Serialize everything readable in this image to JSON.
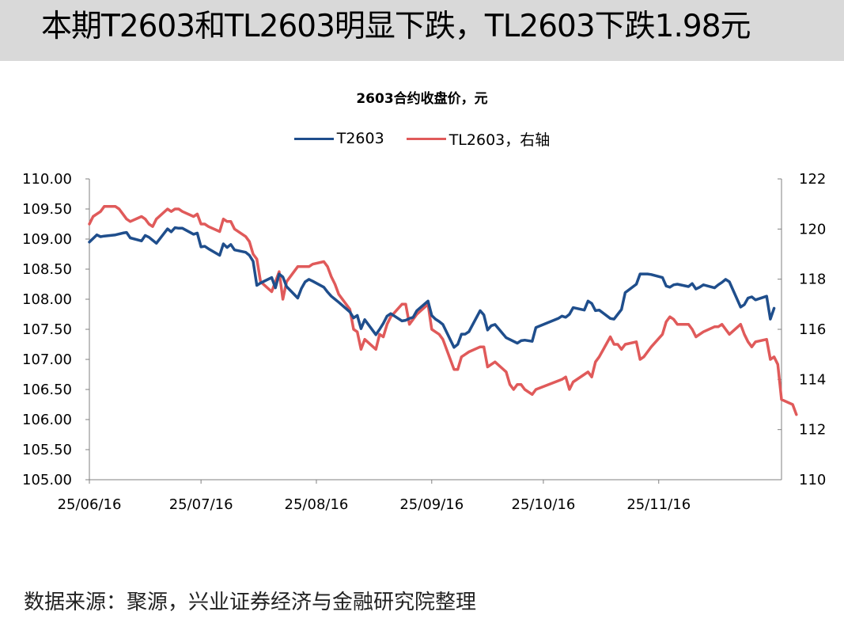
{
  "header": {
    "title": "本期T2603和TL2603明显下跌，TL2603下跌1.98元"
  },
  "footer": {
    "source": "数据来源：聚源，兴业证券经济与金融研究院整理"
  },
  "chart_data": {
    "type": "line",
    "title": "2603合约收盘价，元",
    "xlabel": "",
    "ylabel": "",
    "legend_position": "top-center",
    "grid": false,
    "x_range": [
      "2025-06-16",
      "2025-12-19"
    ],
    "x_tick_labels": [
      "25/06/16",
      "25/07/16",
      "25/08/16",
      "25/09/16",
      "25/10/16",
      "25/11/16"
    ],
    "x_tick_dates": [
      "2025-06-16",
      "2025-07-16",
      "2025-08-16",
      "2025-09-16",
      "2025-10-16",
      "2025-11-16"
    ],
    "y_left": {
      "range": [
        105.0,
        110.0
      ],
      "ticks": [
        "105.00",
        "105.50",
        "106.00",
        "106.50",
        "107.00",
        "107.50",
        "108.00",
        "108.50",
        "109.00",
        "109.50",
        "110.00"
      ]
    },
    "y_right": {
      "range": [
        110,
        122
      ],
      "ticks": [
        "110",
        "112",
        "114",
        "116",
        "118",
        "120",
        "122"
      ]
    },
    "series": [
      {
        "name": "T2603",
        "axis": "left",
        "color": "#1f4e8c",
        "points": [
          [
            "2025-06-16",
            108.95
          ],
          [
            "2025-06-18",
            109.07
          ],
          [
            "2025-06-19",
            109.04
          ],
          [
            "2025-06-20",
            109.05
          ],
          [
            "2025-06-23",
            109.07
          ],
          [
            "2025-06-25",
            109.1
          ],
          [
            "2025-06-26",
            109.11
          ],
          [
            "2025-06-27",
            109.02
          ],
          [
            "2025-06-30",
            108.97
          ],
          [
            "2025-07-01",
            109.06
          ],
          [
            "2025-07-02",
            109.03
          ],
          [
            "2025-07-03",
            108.98
          ],
          [
            "2025-07-04",
            108.93
          ],
          [
            "2025-07-07",
            109.17
          ],
          [
            "2025-07-08",
            109.12
          ],
          [
            "2025-07-09",
            109.19
          ],
          [
            "2025-07-10",
            109.18
          ],
          [
            "2025-07-11",
            109.18
          ],
          [
            "2025-07-14",
            109.08
          ],
          [
            "2025-07-15",
            109.1
          ],
          [
            "2025-07-16",
            108.87
          ],
          [
            "2025-07-17",
            108.88
          ],
          [
            "2025-07-18",
            108.84
          ],
          [
            "2025-07-21",
            108.73
          ],
          [
            "2025-07-22",
            108.92
          ],
          [
            "2025-07-23",
            108.86
          ],
          [
            "2025-07-24",
            108.91
          ],
          [
            "2025-07-25",
            108.82
          ],
          [
            "2025-07-28",
            108.78
          ],
          [
            "2025-07-29",
            108.73
          ],
          [
            "2025-07-30",
            108.63
          ],
          [
            "2025-07-31",
            108.23
          ],
          [
            "2025-08-01",
            108.27
          ],
          [
            "2025-08-04",
            108.36
          ],
          [
            "2025-08-05",
            108.19
          ],
          [
            "2025-08-06",
            108.42
          ],
          [
            "2025-08-07",
            108.37
          ],
          [
            "2025-08-08",
            108.21
          ],
          [
            "2025-08-11",
            108.02
          ],
          [
            "2025-08-12",
            108.18
          ],
          [
            "2025-08-13",
            108.29
          ],
          [
            "2025-08-14",
            108.33
          ],
          [
            "2025-08-15",
            108.3
          ],
          [
            "2025-08-18",
            108.2
          ],
          [
            "2025-08-19",
            108.12
          ],
          [
            "2025-08-20",
            108.05
          ],
          [
            "2025-08-21",
            108.0
          ],
          [
            "2025-08-22",
            107.95
          ],
          [
            "2025-08-25",
            107.79
          ],
          [
            "2025-08-26",
            107.69
          ],
          [
            "2025-08-27",
            107.73
          ],
          [
            "2025-08-28",
            107.51
          ],
          [
            "2025-08-29",
            107.66
          ],
          [
            "2025-09-01",
            107.41
          ],
          [
            "2025-09-02",
            107.5
          ],
          [
            "2025-09-03",
            107.6
          ],
          [
            "2025-09-04",
            107.72
          ],
          [
            "2025-09-05",
            107.76
          ],
          [
            "2025-09-08",
            107.64
          ],
          [
            "2025-09-09",
            107.65
          ],
          [
            "2025-09-10",
            107.68
          ],
          [
            "2025-09-11",
            107.7
          ],
          [
            "2025-09-12",
            107.81
          ],
          [
            "2025-09-15",
            107.97
          ],
          [
            "2025-09-16",
            107.73
          ],
          [
            "2025-09-17",
            107.67
          ],
          [
            "2025-09-18",
            107.63
          ],
          [
            "2025-09-19",
            107.58
          ],
          [
            "2025-09-22",
            107.2
          ],
          [
            "2025-09-23",
            107.25
          ],
          [
            "2025-09-24",
            107.42
          ],
          [
            "2025-09-25",
            107.42
          ],
          [
            "2025-09-26",
            107.46
          ],
          [
            "2025-09-29",
            107.81
          ],
          [
            "2025-09-30",
            107.74
          ],
          [
            "2025-10-01",
            107.49
          ],
          [
            "2025-10-02",
            107.56
          ],
          [
            "2025-10-03",
            107.58
          ],
          [
            "2025-10-06",
            107.36
          ],
          [
            "2025-10-09",
            107.27
          ],
          [
            "2025-10-10",
            107.31
          ],
          [
            "2025-10-11",
            107.32
          ],
          [
            "2025-10-13",
            107.3
          ],
          [
            "2025-10-14",
            107.53
          ],
          [
            "2025-10-20",
            107.68
          ],
          [
            "2025-10-21",
            107.72
          ],
          [
            "2025-10-22",
            107.7
          ],
          [
            "2025-10-23",
            107.75
          ],
          [
            "2025-10-24",
            107.86
          ],
          [
            "2025-10-27",
            107.82
          ],
          [
            "2025-10-28",
            107.97
          ],
          [
            "2025-10-29",
            107.93
          ],
          [
            "2025-10-30",
            107.81
          ],
          [
            "2025-10-31",
            107.82
          ],
          [
            "2025-11-03",
            107.68
          ],
          [
            "2025-11-04",
            107.67
          ],
          [
            "2025-11-05",
            107.75
          ],
          [
            "2025-11-06",
            107.83
          ],
          [
            "2025-11-07",
            108.11
          ],
          [
            "2025-11-10",
            108.25
          ],
          [
            "2025-11-11",
            108.42
          ],
          [
            "2025-11-12",
            108.42
          ],
          [
            "2025-11-13",
            108.42
          ],
          [
            "2025-11-14",
            108.41
          ],
          [
            "2025-11-17",
            108.36
          ],
          [
            "2025-11-18",
            108.22
          ],
          [
            "2025-11-19",
            108.2
          ],
          [
            "2025-11-20",
            108.24
          ],
          [
            "2025-11-21",
            108.25
          ],
          [
            "2025-11-24",
            108.21
          ],
          [
            "2025-11-25",
            108.26
          ],
          [
            "2025-11-26",
            108.17
          ],
          [
            "2025-11-27",
            108.2
          ],
          [
            "2025-11-28",
            108.24
          ],
          [
            "2025-12-01",
            108.19
          ],
          [
            "2025-12-02",
            108.24
          ],
          [
            "2025-12-03",
            108.28
          ],
          [
            "2025-12-04",
            108.33
          ],
          [
            "2025-12-05",
            108.29
          ],
          [
            "2025-12-08",
            107.87
          ],
          [
            "2025-12-09",
            107.91
          ],
          [
            "2025-12-10",
            108.02
          ],
          [
            "2025-12-11",
            108.04
          ],
          [
            "2025-12-12",
            107.99
          ],
          [
            "2025-12-15",
            108.05
          ],
          [
            "2025-12-16",
            107.67
          ],
          [
            "2025-12-17",
            107.85
          ]
        ]
      },
      {
        "name": "TL2603，右轴",
        "axis": "right",
        "color": "#e05a5a",
        "points": [
          [
            "2025-06-16",
            120.2
          ],
          [
            "2025-06-17",
            120.5
          ],
          [
            "2025-06-18",
            120.6
          ],
          [
            "2025-06-19",
            120.7
          ],
          [
            "2025-06-20",
            120.9
          ],
          [
            "2025-06-23",
            120.9
          ],
          [
            "2025-06-24",
            120.8
          ],
          [
            "2025-06-25",
            120.6
          ],
          [
            "2025-06-26",
            120.4
          ],
          [
            "2025-06-27",
            120.3
          ],
          [
            "2025-06-30",
            120.5
          ],
          [
            "2025-07-01",
            120.4
          ],
          [
            "2025-07-02",
            120.2
          ],
          [
            "2025-07-03",
            120.1
          ],
          [
            "2025-07-04",
            120.4
          ],
          [
            "2025-07-07",
            120.8
          ],
          [
            "2025-07-08",
            120.7
          ],
          [
            "2025-07-09",
            120.8
          ],
          [
            "2025-07-10",
            120.8
          ],
          [
            "2025-07-11",
            120.7
          ],
          [
            "2025-07-14",
            120.5
          ],
          [
            "2025-07-15",
            120.6
          ],
          [
            "2025-07-16",
            120.2
          ],
          [
            "2025-07-17",
            120.2
          ],
          [
            "2025-07-18",
            120.1
          ],
          [
            "2025-07-21",
            119.9
          ],
          [
            "2025-07-22",
            120.4
          ],
          [
            "2025-07-23",
            120.3
          ],
          [
            "2025-07-24",
            120.3
          ],
          [
            "2025-07-25",
            120.0
          ],
          [
            "2025-07-28",
            119.7
          ],
          [
            "2025-07-29",
            119.5
          ],
          [
            "2025-07-30",
            119.0
          ],
          [
            "2025-07-31",
            118.8
          ],
          [
            "2025-08-01",
            117.9
          ],
          [
            "2025-08-04",
            117.5
          ],
          [
            "2025-08-05",
            117.9
          ],
          [
            "2025-08-06",
            118.3
          ],
          [
            "2025-08-07",
            117.2
          ],
          [
            "2025-08-08",
            117.9
          ],
          [
            "2025-08-11",
            118.5
          ],
          [
            "2025-08-12",
            118.5
          ],
          [
            "2025-08-13",
            118.5
          ],
          [
            "2025-08-14",
            118.5
          ],
          [
            "2025-08-15",
            118.6
          ],
          [
            "2025-08-18",
            118.7
          ],
          [
            "2025-08-19",
            118.5
          ],
          [
            "2025-08-20",
            118.1
          ],
          [
            "2025-08-21",
            117.8
          ],
          [
            "2025-08-22",
            117.4
          ],
          [
            "2025-08-25",
            116.8
          ],
          [
            "2025-08-26",
            116.0
          ],
          [
            "2025-08-27",
            115.9
          ],
          [
            "2025-08-28",
            115.2
          ],
          [
            "2025-08-29",
            115.6
          ],
          [
            "2025-09-01",
            115.2
          ],
          [
            "2025-09-02",
            115.8
          ],
          [
            "2025-09-03",
            115.7
          ],
          [
            "2025-09-04",
            116.2
          ],
          [
            "2025-09-05",
            116.5
          ],
          [
            "2025-09-08",
            117.0
          ],
          [
            "2025-09-09",
            117.0
          ],
          [
            "2025-09-10",
            116.2
          ],
          [
            "2025-09-11",
            116.4
          ],
          [
            "2025-09-12",
            116.6
          ],
          [
            "2025-09-15",
            117.0
          ],
          [
            "2025-09-16",
            116.0
          ],
          [
            "2025-09-17",
            115.9
          ],
          [
            "2025-09-18",
            115.8
          ],
          [
            "2025-09-19",
            115.6
          ],
          [
            "2025-09-22",
            114.4
          ],
          [
            "2025-09-23",
            114.4
          ],
          [
            "2025-09-24",
            114.9
          ],
          [
            "2025-09-25",
            115.0
          ],
          [
            "2025-09-26",
            115.1
          ],
          [
            "2025-09-29",
            115.3
          ],
          [
            "2025-09-30",
            115.3
          ],
          [
            "2025-10-01",
            114.5
          ],
          [
            "2025-10-02",
            114.6
          ],
          [
            "2025-10-03",
            114.7
          ],
          [
            "2025-10-06",
            114.3
          ],
          [
            "2025-10-07",
            113.8
          ],
          [
            "2025-10-08",
            113.6
          ],
          [
            "2025-10-09",
            113.8
          ],
          [
            "2025-10-10",
            113.8
          ],
          [
            "2025-10-11",
            113.6
          ],
          [
            "2025-10-13",
            113.4
          ],
          [
            "2025-10-14",
            113.6
          ],
          [
            "2025-10-21",
            114.0
          ],
          [
            "2025-10-22",
            114.1
          ],
          [
            "2025-10-23",
            113.6
          ],
          [
            "2025-10-24",
            113.9
          ],
          [
            "2025-10-27",
            114.2
          ],
          [
            "2025-10-28",
            114.3
          ],
          [
            "2025-10-29",
            114.1
          ],
          [
            "2025-10-30",
            114.7
          ],
          [
            "2025-10-31",
            114.9
          ],
          [
            "2025-11-03",
            115.7
          ],
          [
            "2025-11-04",
            115.4
          ],
          [
            "2025-11-05",
            115.4
          ],
          [
            "2025-11-06",
            115.2
          ],
          [
            "2025-11-07",
            115.4
          ],
          [
            "2025-11-10",
            115.5
          ],
          [
            "2025-11-11",
            114.8
          ],
          [
            "2025-11-12",
            114.9
          ],
          [
            "2025-11-13",
            115.1
          ],
          [
            "2025-11-14",
            115.3
          ],
          [
            "2025-11-17",
            115.8
          ],
          [
            "2025-11-18",
            116.3
          ],
          [
            "2025-11-19",
            116.5
          ],
          [
            "2025-11-20",
            116.4
          ],
          [
            "2025-11-21",
            116.2
          ],
          [
            "2025-11-24",
            116.2
          ],
          [
            "2025-11-25",
            116.0
          ],
          [
            "2025-11-26",
            115.7
          ],
          [
            "2025-11-27",
            115.8
          ],
          [
            "2025-11-28",
            115.9
          ],
          [
            "2025-12-01",
            116.1
          ],
          [
            "2025-12-02",
            116.1
          ],
          [
            "2025-12-03",
            116.2
          ],
          [
            "2025-12-04",
            116.0
          ],
          [
            "2025-12-05",
            115.8
          ],
          [
            "2025-12-08",
            116.2
          ],
          [
            "2025-12-09",
            115.8
          ],
          [
            "2025-12-10",
            115.5
          ],
          [
            "2025-12-11",
            115.3
          ],
          [
            "2025-12-12",
            115.5
          ],
          [
            "2025-12-15",
            115.6
          ],
          [
            "2025-12-16",
            114.8
          ],
          [
            "2025-12-17",
            114.9
          ],
          [
            "2025-12-18",
            114.6
          ],
          [
            "2025-12-19",
            113.2
          ],
          [
            "2025-12-22",
            113.0
          ],
          [
            "2025-12-23",
            112.6
          ]
        ]
      }
    ]
  }
}
